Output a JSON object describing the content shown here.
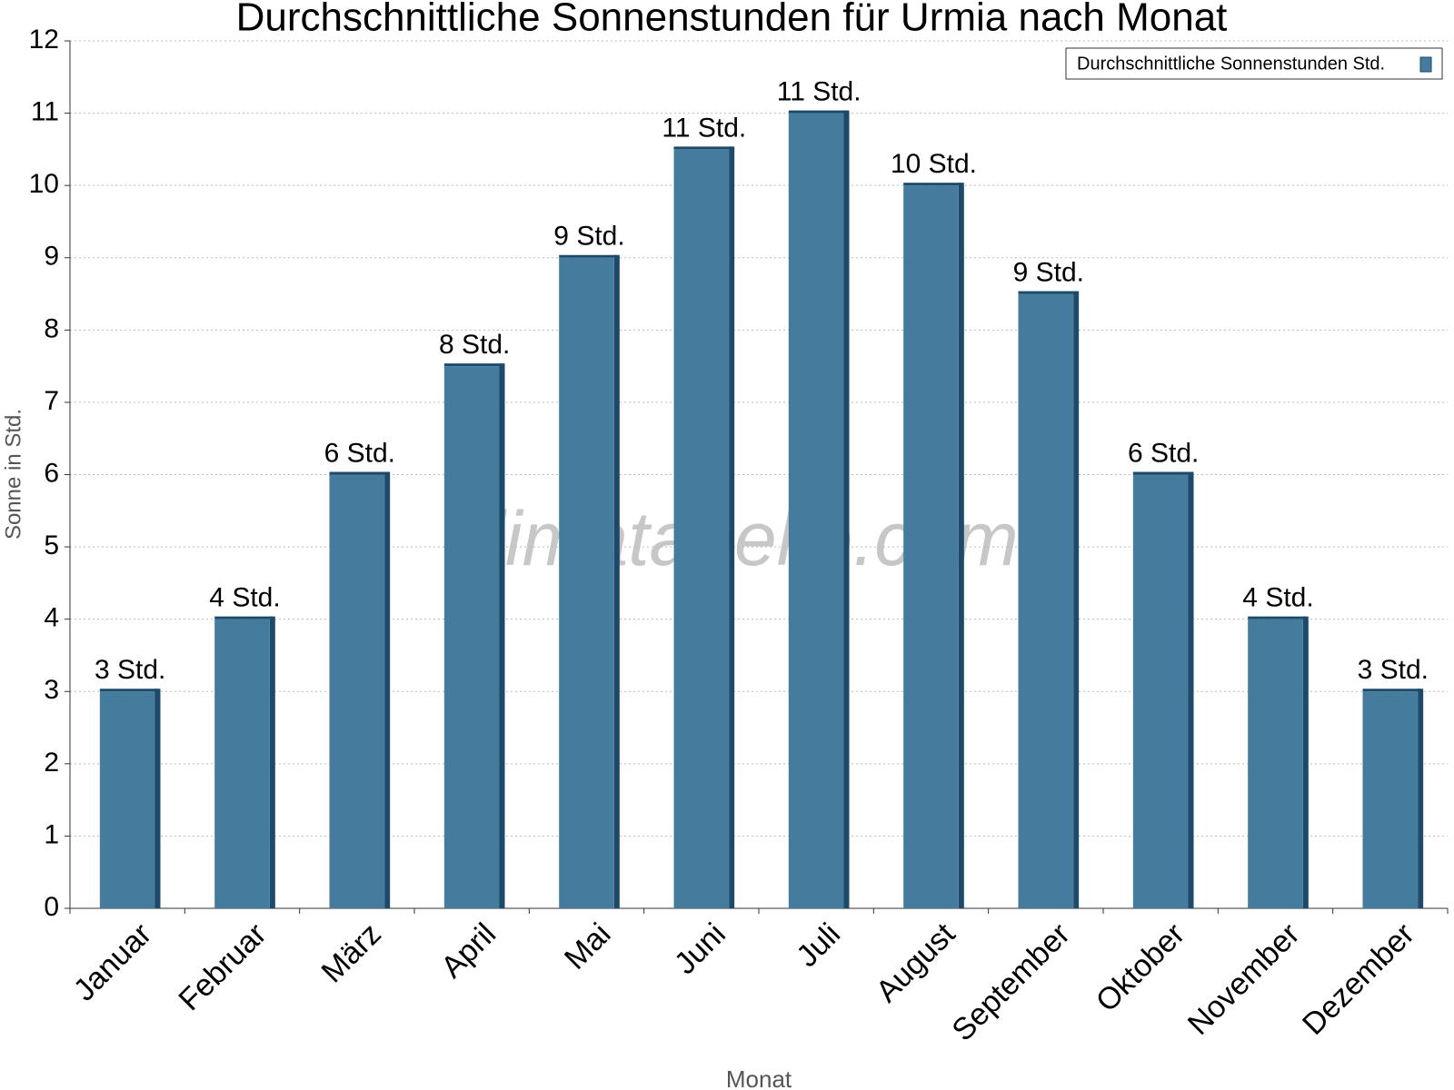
{
  "chart_data": {
    "type": "bar",
    "title": "Durchschnittliche Sonnenstunden für Urmia nach Monat",
    "watermark": "klimatabelle.com",
    "x_label": "Monat",
    "y_label": "Sonne in Std.",
    "categories": [
      "Januar",
      "Februar",
      "März",
      "April",
      "Mai",
      "Juni",
      "Juli",
      "August",
      "September",
      "Oktober",
      "November",
      "Dezember"
    ],
    "series": [
      {
        "name": "Durchschnittliche Sonnenstunden Std.",
        "color": "#457b9d",
        "values": [
          3,
          4,
          6,
          7.5,
          9,
          10.5,
          11,
          10,
          8.5,
          6,
          4,
          3
        ],
        "value_labels": [
          "3 Std.",
          "4 Std.",
          "6 Std.",
          "8 Std.",
          "9 Std.",
          "11 Std.",
          "11 Std.",
          "10 Std.",
          "9 Std.",
          "6 Std.",
          "4 Std.",
          "3 Std."
        ]
      }
    ],
    "ylim": [
      0,
      12
    ],
    "yticks": [
      0,
      1,
      2,
      3,
      4,
      5,
      6,
      7,
      8,
      9,
      10,
      11,
      12
    ],
    "grid": true,
    "legend": "top-right"
  }
}
